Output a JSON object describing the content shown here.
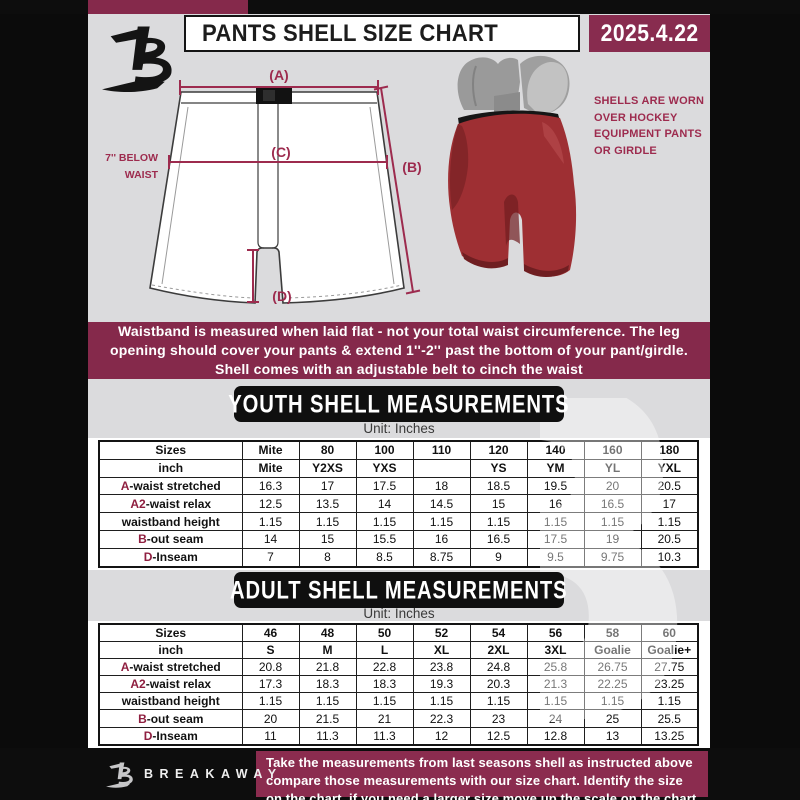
{
  "colors": {
    "maroon": "#85294b",
    "accent_red": "#9d2b4e",
    "table_letter": "#8f1f40",
    "paper": "#dbdbdd",
    "black": "#0d0d0d",
    "shell_red": "#9e2f33"
  },
  "header": {
    "logo_letter": "B",
    "title": "PANTS SHELL SIZE CHART",
    "date": "2025.4.22"
  },
  "diagram": {
    "label_a": "(A)",
    "label_b": "(B)",
    "label_c": "(C)",
    "label_d": "(D)",
    "waist_note": "7'' BELOW\nWAIST",
    "photo_note": "SHELLS ARE WORN\nOVER HOCKEY\nEQUIPMENT PANTS\nOR GIRDLE"
  },
  "notice": "Waistband is measured when laid flat - not your total waist circumference. The leg\nopening should cover your pants & extend 1''-2'' past the bottom of your pant/girdle.\nShell comes with an adjustable belt to cinch the waist",
  "youth": {
    "heading": "YOUTH SHELL MEASUREMENTS",
    "unit": "Unit: Inches",
    "rows": [
      {
        "label": "Sizes",
        "header": true,
        "values": [
          "Mite",
          "80",
          "100",
          "110",
          "120",
          "140",
          "160",
          "180"
        ]
      },
      {
        "label": "inch",
        "header": true,
        "values": [
          "Mite",
          "Y2XS",
          "YXS",
          "",
          "YS",
          "YM",
          "YL",
          "YXL"
        ]
      },
      {
        "prefix": "A",
        "label": "-waist stretched",
        "values": [
          "16.3",
          "17",
          "17.5",
          "18",
          "18.5",
          "19.5",
          "20",
          "20.5"
        ]
      },
      {
        "prefix": "A2",
        "label": "-waist relax",
        "values": [
          "12.5",
          "13.5",
          "14",
          "14.5",
          "15",
          "16",
          "16.5",
          "17"
        ]
      },
      {
        "label": "waistband height",
        "values": [
          "1.15",
          "1.15",
          "1.15",
          "1.15",
          "1.15",
          "1.15",
          "1.15",
          "1.15"
        ]
      },
      {
        "prefix": "B",
        "label": "-out seam",
        "values": [
          "14",
          "15",
          "15.5",
          "16",
          "16.5",
          "17.5",
          "19",
          "20.5"
        ]
      },
      {
        "prefix": "D",
        "label": "-Inseam",
        "values": [
          "7",
          "8",
          "8.5",
          "8.75",
          "9",
          "9.5",
          "9.75",
          "10.3"
        ]
      }
    ]
  },
  "adult": {
    "heading": "ADULT SHELL MEASUREMENTS",
    "unit": "Unit: Inches",
    "rows": [
      {
        "label": "Sizes",
        "header": true,
        "values": [
          "46",
          "48",
          "50",
          "52",
          "54",
          "56",
          "58",
          "60"
        ]
      },
      {
        "label": "inch",
        "header": true,
        "values": [
          "S",
          "M",
          "L",
          "XL",
          "2XL",
          "3XL",
          "Goalie",
          "Goalie+"
        ]
      },
      {
        "prefix": "A",
        "label": "-waist stretched",
        "values": [
          "20.8",
          "21.8",
          "22.8",
          "23.8",
          "24.8",
          "25.8",
          "26.75",
          "27.75"
        ]
      },
      {
        "prefix": "A2",
        "label": "-waist relax",
        "values": [
          "17.3",
          "18.3",
          "18.3",
          "19.3",
          "20.3",
          "21.3",
          "22.25",
          "23.25"
        ]
      },
      {
        "label": "waistband height",
        "values": [
          "1.15",
          "1.15",
          "1.15",
          "1.15",
          "1.15",
          "1.15",
          "1.15",
          "1.15"
        ]
      },
      {
        "prefix": "B",
        "label": "-out seam",
        "values": [
          "20",
          "21.5",
          "21",
          "22.3",
          "23",
          "24",
          "25",
          "25.5"
        ]
      },
      {
        "prefix": "D",
        "label": "-Inseam",
        "values": [
          "11",
          "11.3",
          "11.3",
          "12",
          "12.5",
          "12.8",
          "13",
          "13.25"
        ]
      }
    ]
  },
  "watermark": "B",
  "footer": {
    "logo_letter": "B",
    "brand": "BREAKAWAY",
    "note": "Take the measurements from last seasons shell as instructed above\ncompare those measurements  with our size chart. Identify the size\non the chart, if you need a larger size move up the scale on the chart"
  }
}
